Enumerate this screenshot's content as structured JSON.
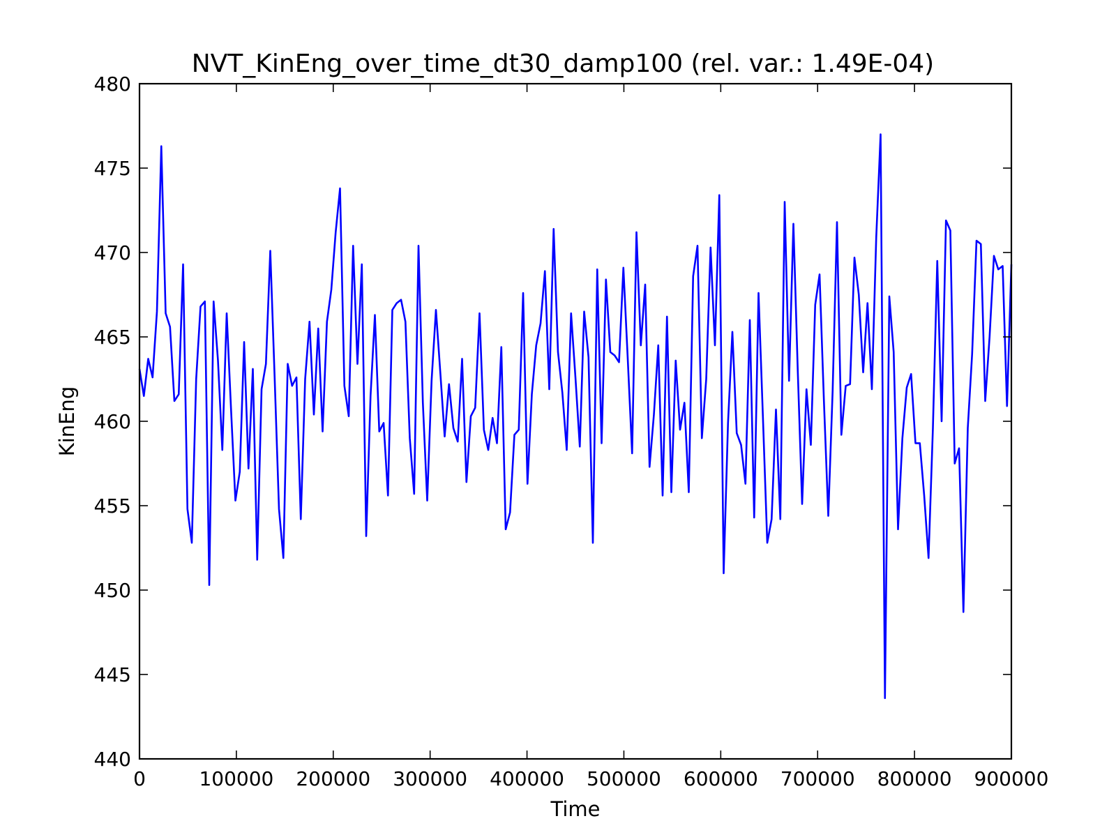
{
  "chart_data": {
    "type": "line",
    "title": "NVT_KinEng_over_time_dt30_damp100 (rel. var.: 1.49E-04)",
    "xlabel": "Time",
    "ylabel": "KinEng",
    "xlim": [
      0,
      900000
    ],
    "ylim": [
      440,
      480
    ],
    "xticks": [
      0,
      100000,
      200000,
      300000,
      400000,
      500000,
      600000,
      700000,
      800000,
      900000
    ],
    "yticks": [
      440,
      445,
      450,
      455,
      460,
      465,
      470,
      475,
      480
    ],
    "xtick_labels": [
      "0",
      "100000",
      "200000",
      "300000",
      "400000",
      "500000",
      "600000",
      "700000",
      "800000",
      "900000"
    ],
    "ytick_labels": [
      "440",
      "445",
      "450",
      "455",
      "460",
      "465",
      "470",
      "475",
      "480"
    ],
    "grid": false,
    "series_color": "#0000ff",
    "series": [
      {
        "values": [
          463.1,
          461.5,
          463.7,
          462.6,
          466.5,
          476.3,
          466.4,
          465.6,
          461.2,
          461.6,
          469.3,
          454.8,
          452.8,
          462.5,
          466.8,
          467.1,
          450.3,
          467.1,
          463.6,
          458.3,
          466.4,
          460.7,
          455.3,
          457.0,
          464.7,
          457.2,
          463.1,
          451.8,
          461.9,
          463.4,
          470.1,
          462.6,
          454.8,
          451.9,
          463.4,
          462.1,
          462.6,
          454.2,
          462.5,
          465.9,
          460.4,
          465.5,
          459.4,
          465.9,
          467.8,
          471.2,
          473.8,
          462.1,
          460.3,
          470.4,
          463.4,
          469.3,
          453.2,
          461.5,
          466.3,
          459.4,
          459.9,
          455.6,
          466.6,
          467.0,
          467.2,
          465.9,
          459.0,
          455.7,
          470.4,
          461.1,
          455.3,
          462.4,
          466.6,
          462.9,
          459.1,
          462.2,
          459.6,
          458.8,
          463.7,
          456.4,
          460.3,
          460.8,
          466.4,
          459.5,
          458.3,
          460.2,
          458.7,
          464.4,
          453.6,
          454.6,
          459.2,
          459.5,
          467.6,
          456.3,
          461.6,
          464.5,
          465.8,
          468.9,
          461.9,
          471.4,
          464.1,
          461.7,
          458.3,
          466.4,
          462.6,
          458.5,
          466.5,
          463.8,
          452.8,
          469.0,
          458.7,
          468.4,
          464.1,
          463.9,
          463.5,
          469.1,
          463.7,
          458.1,
          471.2,
          464.5,
          468.1,
          457.3,
          460.4,
          464.5,
          455.6,
          466.2,
          455.8,
          463.6,
          459.5,
          461.1,
          455.8,
          468.6,
          470.4,
          459.0,
          462.5,
          470.3,
          464.5,
          473.4,
          451.0,
          459.9,
          465.3,
          459.3,
          458.6,
          456.3,
          466.0,
          454.3,
          467.6,
          460.3,
          452.8,
          454.2,
          460.7,
          454.2,
          473.0,
          462.4,
          471.7,
          463.0,
          455.1,
          461.9,
          458.6,
          466.9,
          468.7,
          461.2,
          454.4,
          461.8,
          471.8,
          459.2,
          462.1,
          462.2,
          469.7,
          467.5,
          462.9,
          467.0,
          461.9,
          470.9,
          477.0,
          443.6,
          467.4,
          464.1,
          453.6,
          459.0,
          462.0,
          462.8,
          458.7,
          458.7,
          455.6,
          451.9,
          459.6,
          469.5,
          460.0,
          471.9,
          471.3,
          457.5,
          458.4,
          448.7,
          459.6,
          464.0,
          470.7,
          470.5,
          461.2,
          465.0,
          469.8,
          469.0,
          469.2,
          460.9,
          469.3
        ]
      }
    ]
  }
}
